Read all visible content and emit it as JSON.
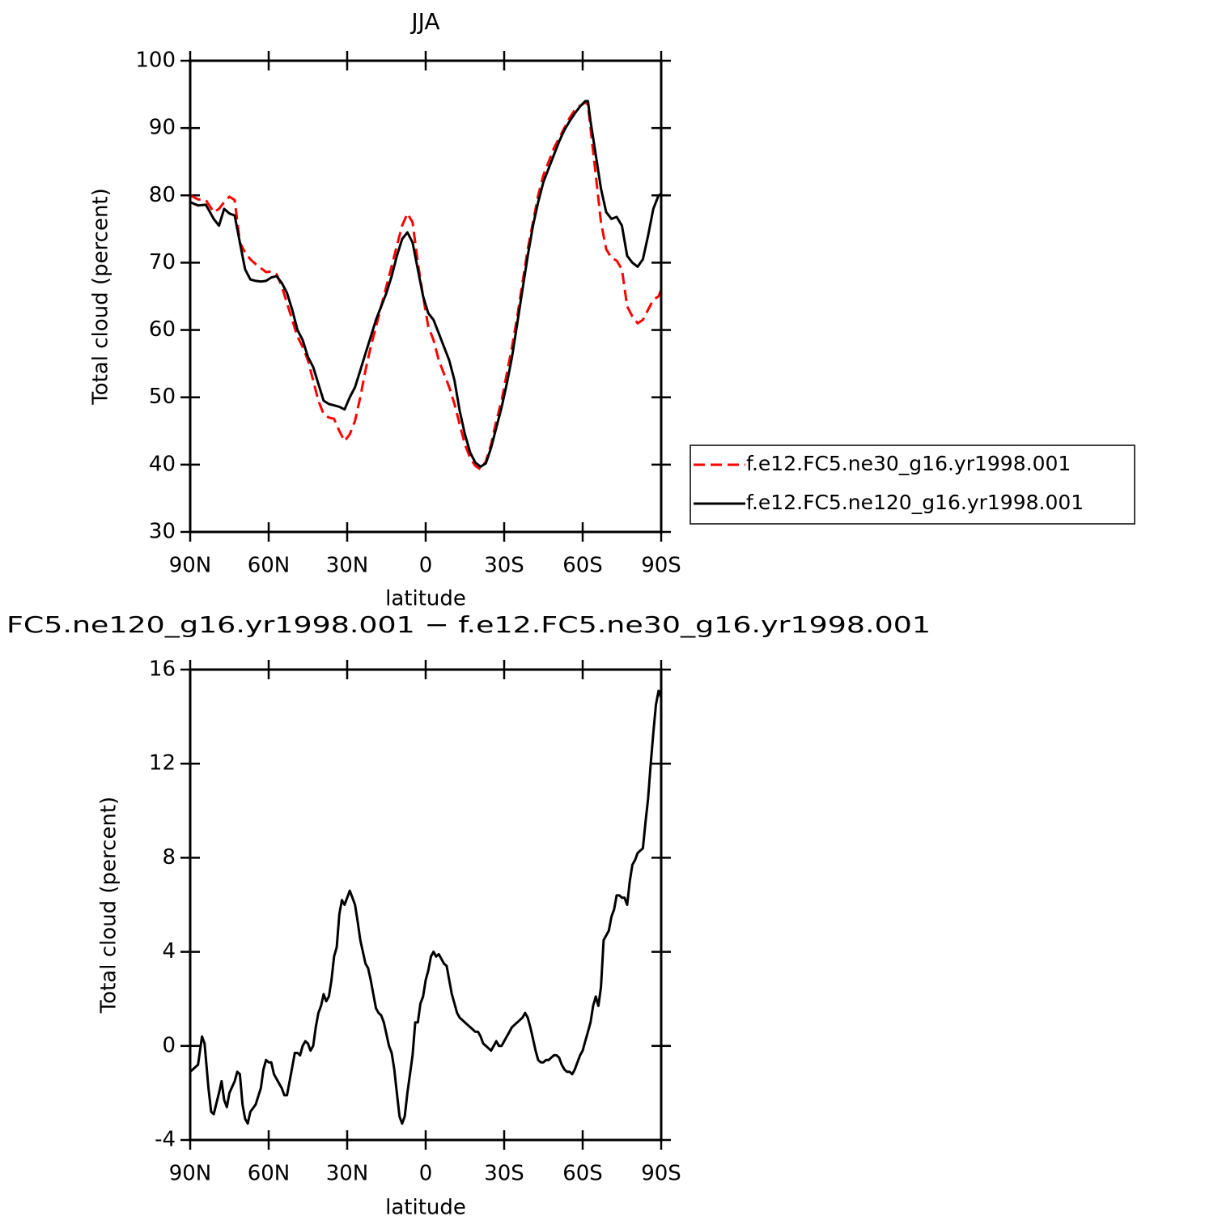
{
  "chart_data": [
    {
      "type": "line",
      "title": "JJA",
      "xlabel": "latitude",
      "ylabel": "Total cloud (percent)",
      "xlim": [
        90,
        -90
      ],
      "ylim": [
        30,
        100
      ],
      "xticks": [
        {
          "value": 90,
          "label": "90N"
        },
        {
          "value": 60,
          "label": "60N"
        },
        {
          "value": 30,
          "label": "30N"
        },
        0,
        {
          "value": -30,
          "label": "30S"
        },
        {
          "value": -60,
          "label": "60S"
        },
        {
          "value": -90,
          "label": "90S"
        }
      ],
      "yticks": [
        30,
        40,
        50,
        60,
        70,
        80,
        90,
        100
      ],
      "legend": "right",
      "x": [
        90,
        87,
        84,
        81,
        79,
        77,
        75,
        73,
        71,
        69,
        67,
        65,
        63,
        61,
        59,
        57,
        55,
        53,
        51,
        49,
        47,
        45,
        43,
        41,
        39,
        37,
        35,
        33,
        31,
        29,
        27,
        25,
        23,
        21,
        19,
        17,
        15,
        13,
        11,
        9,
        7,
        5,
        3,
        1,
        -1,
        -3,
        -5,
        -7,
        -9,
        -11,
        -13,
        -15,
        -17,
        -19,
        -21,
        -23,
        -25,
        -27,
        -29,
        -31,
        -33,
        -35,
        -37,
        -39,
        -41,
        -43,
        -45,
        -47,
        -49,
        -51,
        -53,
        -55,
        -57,
        -59,
        -61,
        -62,
        -63,
        -65,
        -67,
        -69,
        -71,
        -73,
        -75,
        -77,
        -79,
        -81,
        -83,
        -85,
        -87,
        -89,
        -90
      ],
      "series": [
        {
          "name": "f.e12.FC5.ne30_g16.yr1998.001",
          "color": "#ff0000",
          "dashed": true,
          "values": [
            80,
            79.4,
            79.3,
            77.5,
            78,
            79,
            79.8,
            79.3,
            73,
            71.5,
            70.5,
            69.8,
            69.2,
            68.6,
            68.7,
            68.3,
            66.5,
            64,
            61.5,
            59,
            57.5,
            55.5,
            52.5,
            49.5,
            47.5,
            47,
            46.8,
            45,
            43.5,
            44.5,
            46.5,
            50,
            54,
            57.5,
            60.5,
            63.5,
            66.5,
            69.5,
            72.5,
            75.5,
            77.3,
            76,
            70,
            65,
            60.5,
            58.5,
            55.5,
            53.5,
            51.5,
            49,
            46,
            43,
            41,
            39.8,
            39.3,
            40.5,
            43,
            46.5,
            49.5,
            53.5,
            57.5,
            62,
            67,
            72,
            76,
            80,
            83,
            85,
            87,
            88.5,
            90,
            91.5,
            92.7,
            93.3,
            93.8,
            93.5,
            90,
            83,
            76,
            72,
            70.7,
            70.3,
            69,
            63.5,
            62,
            61,
            61.5,
            63,
            64.5,
            65,
            66
          ]
        },
        {
          "name": "f.e12.FC5.ne120_g16.yr1998.001",
          "color": "#000000",
          "dashed": false,
          "values": [
            79,
            78.5,
            78.6,
            76.5,
            75.5,
            78,
            77.3,
            77,
            73,
            69,
            67.5,
            67.3,
            67.2,
            67.3,
            67.8,
            68,
            67,
            65.5,
            63,
            60,
            58.5,
            56,
            54.5,
            52,
            49.5,
            49,
            48.8,
            48.6,
            48.2,
            50,
            51.5,
            54,
            56.5,
            59,
            61.5,
            63.5,
            65.5,
            68,
            71,
            73.5,
            74.5,
            73,
            69,
            65,
            62.5,
            61.5,
            59.5,
            57.5,
            55.5,
            52.5,
            48,
            44.5,
            41.8,
            40.3,
            39.7,
            40.2,
            42.5,
            45.5,
            48.5,
            52,
            56,
            61,
            66,
            71,
            75.5,
            79,
            82,
            84,
            86,
            88,
            89.7,
            91,
            92.2,
            93.2,
            94,
            94,
            91,
            86,
            81,
            77.5,
            76.5,
            76.8,
            75.5,
            71,
            70,
            69.4,
            70.5,
            74,
            78,
            80,
            80.2
          ]
        }
      ]
    },
    {
      "type": "line",
      "title": "FC5.ne120_g16.yr1998.001 − f.e12.FC5.ne30_g16.yr1998.001",
      "xlabel": "latitude",
      "ylabel": "Total cloud (percent)",
      "xlim": [
        90,
        -90
      ],
      "ylim": [
        -4,
        16
      ],
      "xticks": [
        {
          "value": 90,
          "label": "90N"
        },
        {
          "value": 60,
          "label": "60N"
        },
        {
          "value": 30,
          "label": "30N"
        },
        0,
        {
          "value": -30,
          "label": "30S"
        },
        {
          "value": -60,
          "label": "60S"
        },
        {
          "value": -90,
          "label": "90S"
        }
      ],
      "yticks": [
        -4,
        0,
        4,
        8,
        12,
        16
      ],
      "color": "#000000",
      "x": [
        90,
        87,
        85.5,
        84.5,
        83,
        82,
        81,
        79,
        78,
        77,
        76,
        75,
        73,
        72,
        71,
        70,
        69,
        68,
        67,
        65,
        63,
        62,
        61,
        60,
        59,
        58,
        57,
        55,
        54,
        53,
        52,
        50,
        49,
        48,
        47,
        46,
        45,
        44,
        43,
        42,
        41,
        40,
        39,
        38,
        37,
        36,
        35,
        34,
        33,
        32,
        31,
        30,
        29,
        28,
        27,
        26,
        25,
        24,
        23,
        22,
        21,
        20,
        19,
        18,
        17,
        16,
        15,
        14,
        13,
        12,
        11,
        10,
        9,
        8,
        7,
        6,
        5,
        4,
        3,
        2,
        1,
        0,
        -1,
        -2,
        -3,
        -4,
        -5,
        -6,
        -7,
        -8,
        -9,
        -10,
        -11,
        -12,
        -13,
        -15,
        -17,
        -18,
        -19,
        -20,
        -21,
        -22,
        -23,
        -24,
        -25,
        -26,
        -27,
        -28,
        -29,
        -30,
        -31,
        -32,
        -33,
        -34,
        -35,
        -36,
        -37,
        -38,
        -39,
        -40,
        -41,
        -42,
        -43,
        -44,
        -45,
        -46,
        -47,
        -48,
        -49,
        -50,
        -51,
        -52,
        -53,
        -54,
        -55,
        -56,
        -57,
        -58,
        -59,
        -60,
        -61,
        -62,
        -63,
        -64,
        -65,
        -66,
        -67,
        -68,
        -69,
        -70,
        -71,
        -72,
        -73,
        -74,
        -75,
        -76,
        -77,
        -78,
        -79,
        -80,
        -81,
        -82,
        -83,
        -84,
        -85,
        -86,
        -87,
        -88,
        -89,
        -90
      ],
      "values": [
        -1.1,
        -0.8,
        0.4,
        0.1,
        -1.8,
        -2.8,
        -2.9,
        -2,
        -1.5,
        -2.3,
        -2.6,
        -2,
        -1.5,
        -1.1,
        -1.2,
        -2.5,
        -3.1,
        -3.3,
        -2.8,
        -2.5,
        -1.8,
        -1,
        -0.6,
        -0.7,
        -0.7,
        -1.2,
        -1.4,
        -1.8,
        -2.1,
        -2.1,
        -1.5,
        -0.3,
        -0.3,
        -0.4,
        0,
        0.2,
        0.1,
        -0.2,
        0,
        0.8,
        1.4,
        1.7,
        2.2,
        1.9,
        2.1,
        2.8,
        3.8,
        4.2,
        5.6,
        6.2,
        6.0,
        6.3,
        6.6,
        6.3,
        6,
        5.3,
        4.5,
        4,
        3.5,
        3.3,
        2.8,
        2.2,
        1.6,
        1.4,
        1.3,
        1,
        0.5,
        0,
        -0.3,
        -1,
        -2,
        -3,
        -3.3,
        -3,
        -2,
        -1.2,
        -0.4,
        1,
        1,
        1.8,
        2.1,
        2.8,
        3.2,
        3.8,
        4.0,
        3.8,
        3.9,
        3.7,
        3.5,
        3.4,
        2.8,
        2.2,
        1.8,
        1.4,
        1.2,
        1,
        0.8,
        0.7,
        0.6,
        0.6,
        0.4,
        0.1,
        0,
        -0.1,
        -0.2,
        0,
        0.2,
        0,
        0,
        0.2,
        0.4,
        0.6,
        0.8,
        0.9,
        1,
        1.1,
        1.2,
        1.4,
        1.2,
        0.8,
        0.3,
        -0.2,
        -0.6,
        -0.7,
        -0.7,
        -0.6,
        -0.6,
        -0.5,
        -0.4,
        -0.4,
        -0.5,
        -0.8,
        -1,
        -1.1,
        -1.1,
        -1.2,
        -1.0,
        -0.7,
        -0.4,
        -0.2,
        0.2,
        0.6,
        1,
        1.7,
        2.1,
        1.7,
        2.5,
        4.5,
        4.7,
        4.9,
        5.5,
        5.8,
        6.4,
        6.4,
        6.3,
        6.3,
        6.0,
        7.0,
        7.7,
        7.9,
        8.2,
        8.3,
        8.4,
        9.5,
        10.5,
        12,
        13.3,
        14.5,
        15.1,
        14.8
      ]
    }
  ]
}
